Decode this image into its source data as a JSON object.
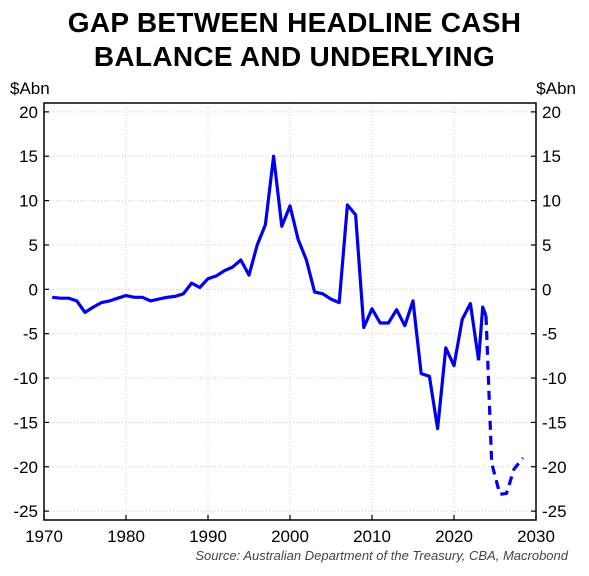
{
  "chart_data": {
    "type": "line",
    "title_lines": [
      "GAP BETWEEN HEADLINE CASH",
      "BALANCE AND UNDERLYING"
    ],
    "ylabel_left": "$Abn",
    "ylabel_right": "$Abn",
    "source": "Source: Australian Department of the Treasury, CBA, Macrobond",
    "xlim": [
      1970,
      2030
    ],
    "ylim": [
      -26,
      21
    ],
    "x_ticks": [
      1970,
      1980,
      1990,
      2000,
      2010,
      2020,
      2030
    ],
    "x_tick_labels": [
      "1970",
      "1980",
      "1990",
      "2000",
      "2010",
      "2020",
      "2030"
    ],
    "y_ticks": [
      20,
      15,
      10,
      5,
      0,
      -5,
      -10,
      -15,
      -20,
      -25
    ],
    "y_tick_labels": [
      "20",
      "15",
      "10",
      "5",
      "0",
      "-5",
      "-10",
      "-15",
      "-20",
      "-25"
    ],
    "grid": true,
    "line_color": "#0000ee",
    "series": [
      {
        "style": "solid",
        "x": [
          1971,
          1972,
          1973,
          1974,
          1975,
          1976,
          1977,
          1978,
          1979,
          1980,
          1981,
          1982,
          1983,
          1984,
          1985,
          1986,
          1987,
          1988,
          1989,
          1990,
          1991,
          1992,
          1993,
          1994,
          1995,
          1996,
          1997,
          1998,
          1999,
          2000,
          2001,
          2002,
          2003,
          2004,
          2005,
          2006,
          2007,
          2008,
          2009,
          2010,
          2011,
          2012,
          2013,
          2014,
          2015,
          2016,
          2017,
          2018,
          2019,
          2020,
          2021,
          2022,
          2023
        ],
        "y": [
          -0.9,
          -1.0,
          -1.0,
          -1.3,
          -2.6,
          -2.0,
          -1.5,
          -1.3,
          -1.0,
          -0.7,
          -0.9,
          -0.9,
          -1.3,
          -1.1,
          -0.9,
          -0.8,
          -0.5,
          0.7,
          0.2,
          1.2,
          1.5,
          2.1,
          2.5,
          3.3,
          1.6,
          5.0,
          7.3,
          15.0,
          7.1,
          9.4,
          5.6,
          3.3,
          -0.3,
          -0.5,
          -1.1,
          -1.5,
          9.5,
          8.4,
          -4.3,
          -2.2,
          -3.8,
          -3.8,
          -2.3,
          -4.1,
          -1.3,
          -9.5,
          -9.8,
          -15.7,
          -6.6,
          -8.6,
          -3.4,
          -1.6,
          -8.0
        ]
      },
      {
        "style": "solid",
        "x": [
          2023,
          2023.5,
          2023.9
        ],
        "y": [
          -8.0,
          -2.0,
          -3.0
        ]
      },
      {
        "style": "dashed",
        "x": [
          2023.9,
          2024.6,
          2025.6,
          2026.4,
          2027.3,
          2028.4
        ],
        "y": [
          -3.0,
          -19.6,
          -23.1,
          -23.0,
          -20.3,
          -19.0
        ]
      }
    ]
  }
}
